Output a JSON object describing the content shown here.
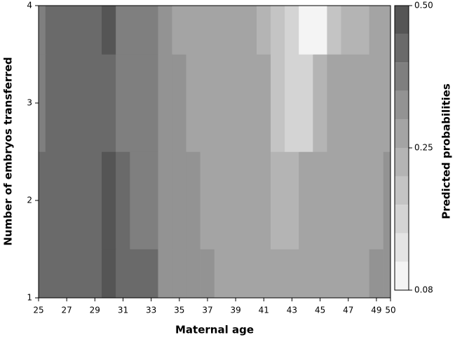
{
  "chart_data": {
    "type": "contour",
    "x_label": "Maternal age",
    "y_label": "Number of embryos transferred",
    "colorbar_label": "Predicted probabilities",
    "x": [
      25,
      26,
      27,
      28,
      29,
      30,
      31,
      32,
      33,
      34,
      35,
      36,
      37,
      38,
      39,
      40,
      41,
      42,
      43,
      44,
      45,
      46,
      47,
      48,
      49,
      50
    ],
    "y": [
      1,
      2,
      3,
      4
    ],
    "z": [
      [
        0.44,
        0.44,
        0.44,
        0.44,
        0.44,
        0.48,
        0.42,
        0.4,
        0.4,
        0.32,
        0.31,
        0.3,
        0.3,
        0.29,
        0.29,
        0.28,
        0.26,
        0.26,
        0.25,
        0.25,
        0.27,
        0.28,
        0.28,
        0.29,
        0.31,
        0.32
      ],
      [
        0.4,
        0.42,
        0.44,
        0.44,
        0.44,
        0.45,
        0.42,
        0.38,
        0.38,
        0.31,
        0.3,
        0.3,
        0.29,
        0.29,
        0.28,
        0.27,
        0.25,
        0.24,
        0.24,
        0.25,
        0.27,
        0.27,
        0.28,
        0.28,
        0.29,
        0.3
      ],
      [
        0.38,
        0.4,
        0.4,
        0.42,
        0.44,
        0.43,
        0.38,
        0.38,
        0.36,
        0.33,
        0.3,
        0.29,
        0.28,
        0.28,
        0.27,
        0.26,
        0.25,
        0.17,
        0.14,
        0.14,
        0.2,
        0.25,
        0.27,
        0.28,
        0.28,
        0.27
      ],
      [
        0.38,
        0.4,
        0.41,
        0.42,
        0.44,
        0.48,
        0.38,
        0.38,
        0.36,
        0.32,
        0.29,
        0.28,
        0.27,
        0.27,
        0.26,
        0.25,
        0.23,
        0.15,
        0.12,
        0.09,
        0.09,
        0.15,
        0.2,
        0.24,
        0.26,
        0.26
      ]
    ],
    "xlim": [
      25,
      50
    ],
    "ylim": [
      1,
      4
    ],
    "xticks": [
      25,
      27,
      29,
      31,
      33,
      35,
      37,
      39,
      41,
      43,
      45,
      47,
      49,
      50
    ],
    "yticks": [
      1,
      2,
      3,
      4
    ],
    "levels": [
      0.08,
      0.1,
      0.12,
      0.15,
      0.2,
      0.25,
      0.3,
      0.35,
      0.4,
      0.45,
      0.5
    ],
    "colors": [
      "#f4f4f4",
      "#e4e4e4",
      "#d4d4d4",
      "#c4c4c4",
      "#b4b4b4",
      "#a4a4a4",
      "#939393",
      "#7f7f7f",
      "#6a6a6a",
      "#555555"
    ],
    "colorbar_ticks": [
      0.08,
      0.25,
      {
        "value": 0.5,
        "label": "0.50"
      }
    ]
  }
}
